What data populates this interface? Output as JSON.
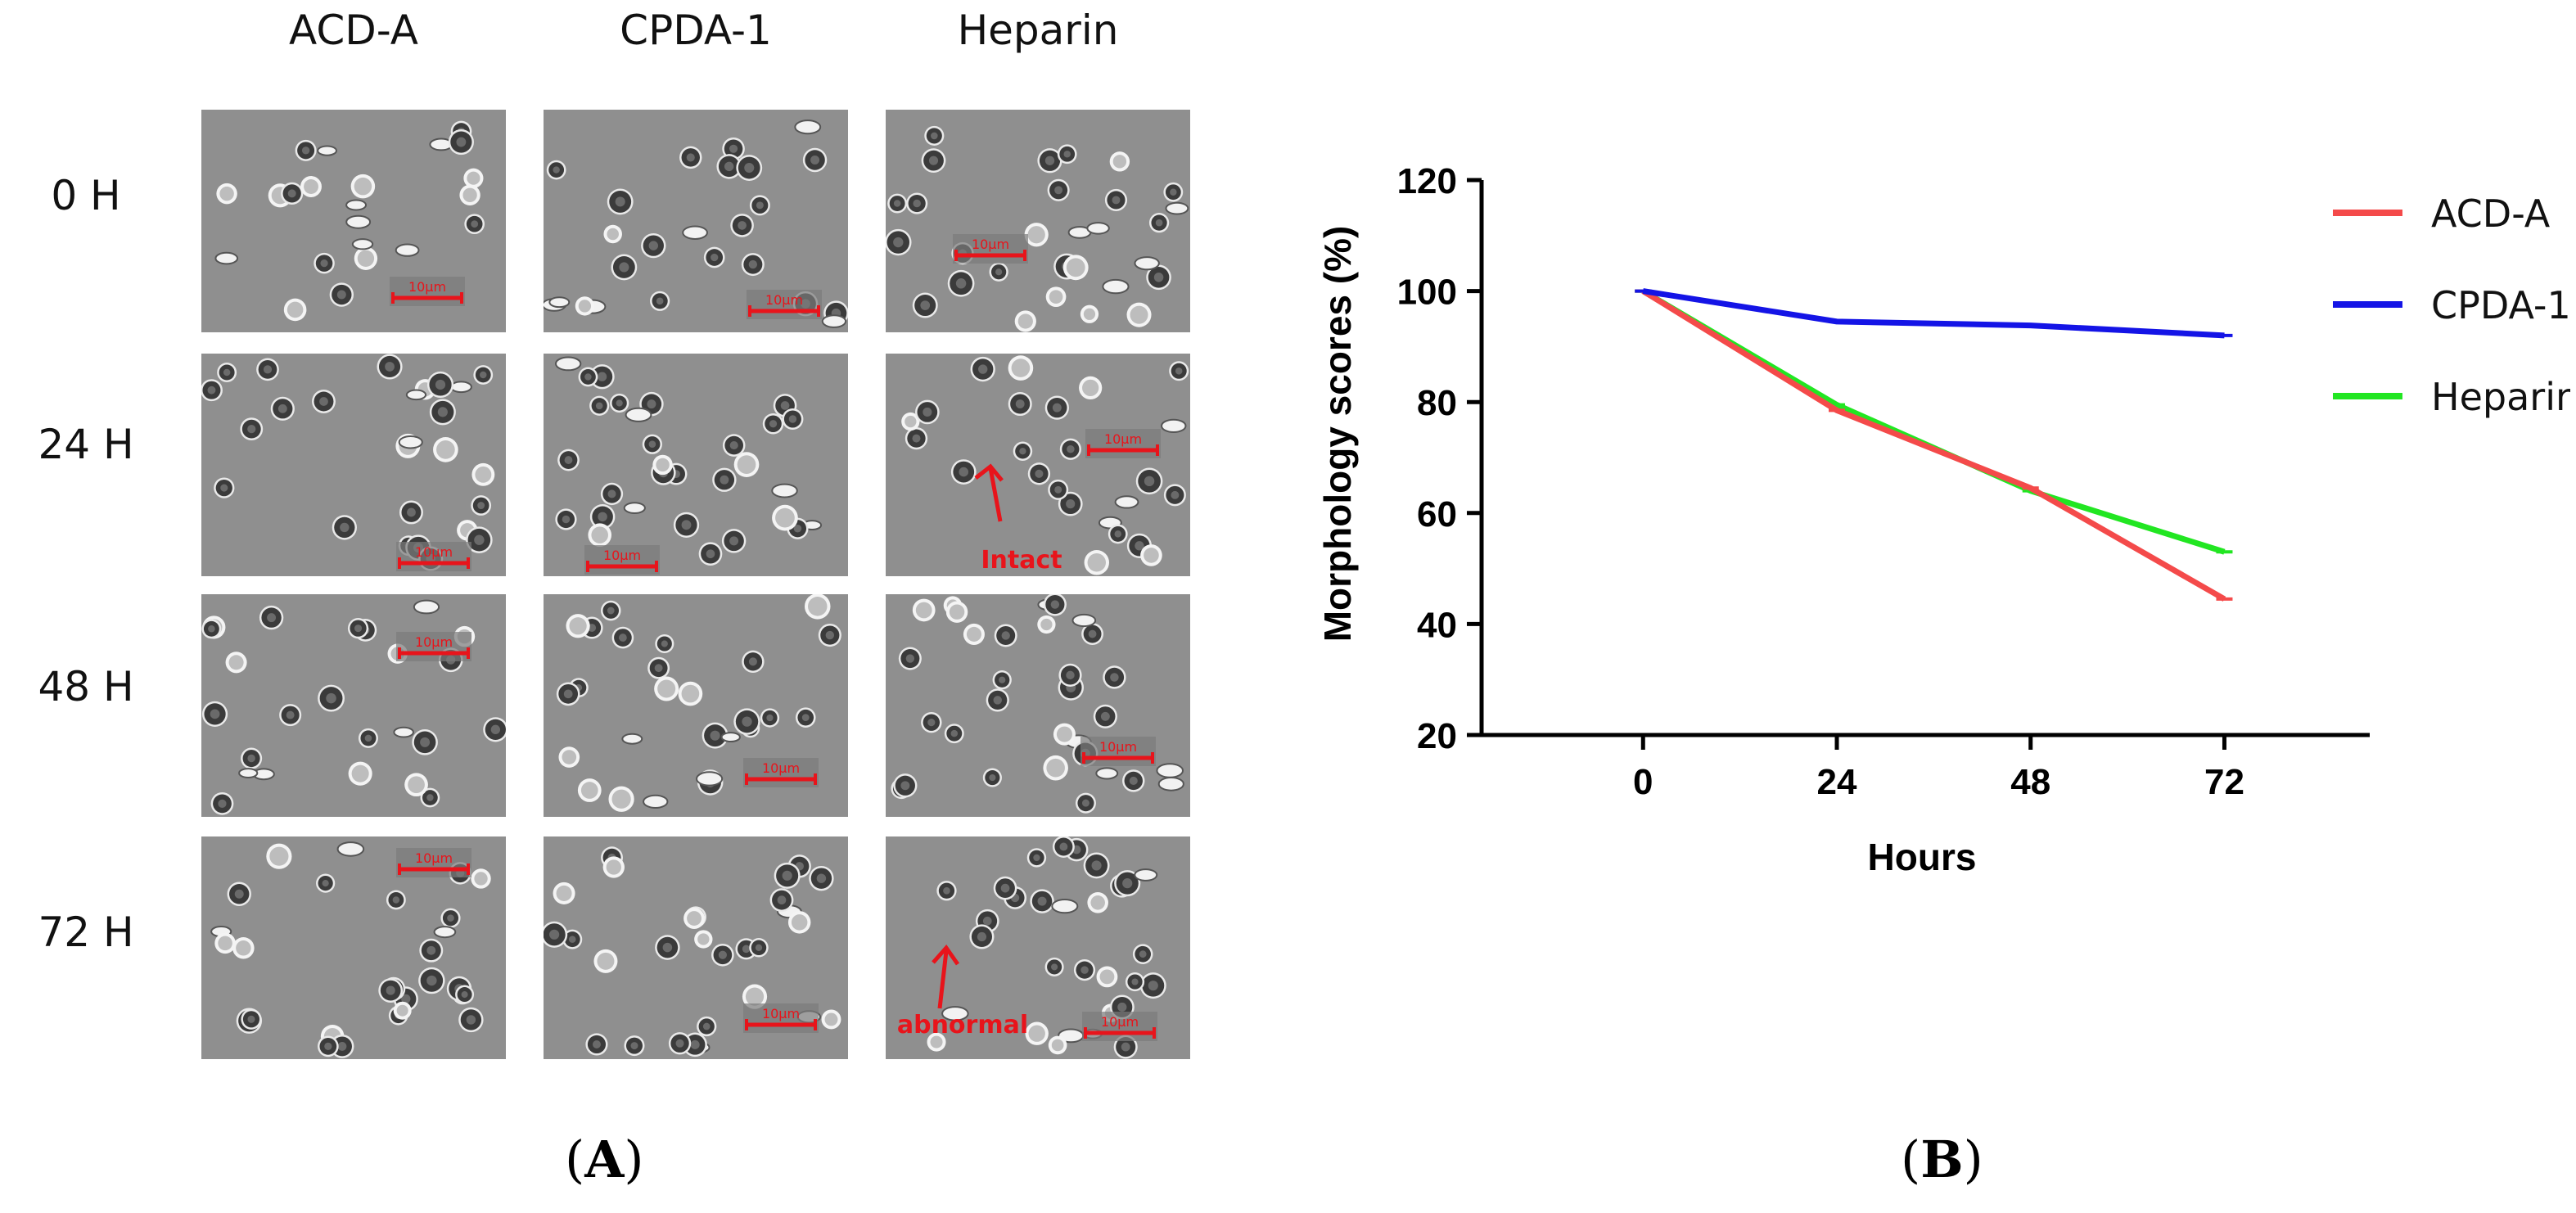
{
  "panel_a": {
    "column_headers": [
      "ACD-A",
      "CPDA-1",
      "Heparin"
    ],
    "row_headers": [
      "0  H",
      "24  H",
      "48  H",
      "72  H"
    ],
    "scale_bar_label": "10μm",
    "annotations": {
      "intact": "Intact",
      "abnormal": "abnormal"
    },
    "label": "A"
  },
  "panel_b": {
    "label": "B"
  },
  "colors": {
    "acd": "#f44a4a",
    "cpda": "#1414e6",
    "heparin": "#22e622",
    "annot": "#e8141b"
  },
  "chart_data": {
    "type": "line",
    "title": "",
    "xlabel": "Hours",
    "ylabel": "Morphology scores (%)",
    "x": [
      0,
      24,
      48,
      72
    ],
    "xlim": [
      -20,
      90
    ],
    "ylim": [
      20,
      120
    ],
    "yticks": [
      20,
      40,
      60,
      80,
      100,
      120
    ],
    "xticks": [
      0,
      24,
      48,
      72
    ],
    "legend_position": "top-right",
    "series": [
      {
        "name": "ACD-A",
        "values": [
          100,
          78.5,
          64.5,
          44.5
        ],
        "color": "#f44a4a"
      },
      {
        "name": "CPDA-1",
        "values": [
          100,
          94.5,
          93.8,
          92
        ],
        "color": "#1414e6"
      },
      {
        "name": "Heparin",
        "values": [
          100,
          79.5,
          64,
          53
        ],
        "color": "#22e622"
      }
    ]
  }
}
